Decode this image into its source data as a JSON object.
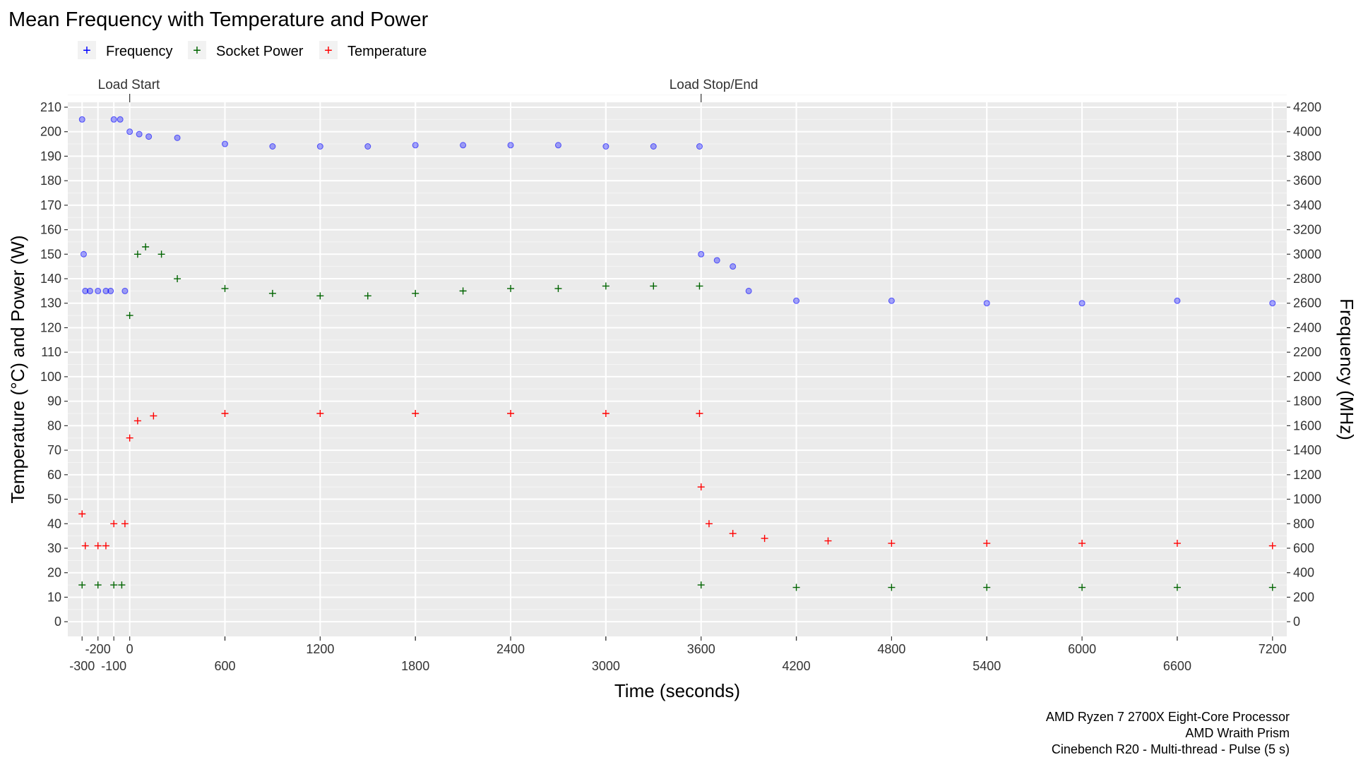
{
  "chart_data": {
    "type": "scatter",
    "title": "Mean Frequency with Temperature and Power",
    "xlabel": "Time (seconds)",
    "ylabel_left": "Temperature (°C) and Power (W)",
    "ylabel_right": "Frequency (MHz)",
    "xlim": [
      -300,
      7200
    ],
    "ylim_left": [
      0,
      210
    ],
    "ylim_right": [
      0,
      4200
    ],
    "x_ticks_upper": [
      -200,
      0,
      600,
      1200,
      1800,
      2400,
      3000,
      3600,
      4200,
      4800,
      5400,
      6000,
      6600,
      7200
    ],
    "x_ticks_lower": [
      -300,
      -100,
      600,
      1800,
      3000,
      4200,
      5400,
      6600
    ],
    "x_ticks_upper_labels": [
      "-200",
      "0",
      "",
      "1200",
      "",
      "2400",
      "",
      "3600",
      "",
      "4800",
      "",
      "6000",
      "",
      "7200"
    ],
    "x_ticks_lower_labels": [
      "-300",
      "-100",
      "600",
      "1800",
      "3000",
      "4200",
      "5400",
      "6600"
    ],
    "y_ticks_left": [
      0,
      10,
      20,
      30,
      40,
      50,
      60,
      70,
      80,
      90,
      100,
      110,
      120,
      130,
      140,
      150,
      160,
      170,
      180,
      190,
      200,
      210
    ],
    "y_ticks_right": [
      0,
      200,
      400,
      600,
      800,
      1000,
      1200,
      1400,
      1600,
      1800,
      2000,
      2200,
      2400,
      2600,
      2800,
      3000,
      3200,
      3400,
      3600,
      3800,
      4000,
      4200
    ],
    "legend": [
      {
        "label": "Frequency",
        "color": "#0000ff"
      },
      {
        "label": "Socket Power",
        "color": "#006400"
      },
      {
        "label": "Temperature",
        "color": "#ff0000"
      }
    ],
    "annotations": [
      {
        "label": "Load Start",
        "x": 0
      },
      {
        "label": "Load Stop/End",
        "x": 3600
      }
    ],
    "grid": true,
    "legend_position": "top",
    "series": [
      {
        "name": "Frequency",
        "axis": "right",
        "marker": "circle",
        "color": "#0000ff",
        "points": [
          [
            -300,
            4100
          ],
          [
            -290,
            3000
          ],
          [
            -280,
            2700
          ],
          [
            -250,
            2700
          ],
          [
            -200,
            2700
          ],
          [
            -150,
            2700
          ],
          [
            -120,
            2700
          ],
          [
            -100,
            4100
          ],
          [
            -60,
            4100
          ],
          [
            -30,
            2700
          ],
          [
            0,
            4000
          ],
          [
            60,
            3980
          ],
          [
            120,
            3960
          ],
          [
            300,
            3950
          ],
          [
            600,
            3900
          ],
          [
            900,
            3880
          ],
          [
            1200,
            3880
          ],
          [
            1500,
            3880
          ],
          [
            1800,
            3890
          ],
          [
            2100,
            3890
          ],
          [
            2400,
            3890
          ],
          [
            2700,
            3890
          ],
          [
            3000,
            3880
          ],
          [
            3300,
            3880
          ],
          [
            3590,
            3880
          ],
          [
            3600,
            3000
          ],
          [
            3700,
            2950
          ],
          [
            3800,
            2900
          ],
          [
            3900,
            2700
          ],
          [
            4200,
            2620
          ],
          [
            4800,
            2620
          ],
          [
            5400,
            2600
          ],
          [
            6000,
            2600
          ],
          [
            6600,
            2620
          ],
          [
            7200,
            2600
          ]
        ]
      },
      {
        "name": "Socket Power",
        "axis": "left",
        "marker": "plus",
        "color": "#006400",
        "points": [
          [
            -300,
            15
          ],
          [
            -200,
            15
          ],
          [
            -100,
            15
          ],
          [
            -50,
            15
          ],
          [
            0,
            125
          ],
          [
            50,
            150
          ],
          [
            100,
            153
          ],
          [
            200,
            150
          ],
          [
            300,
            140
          ],
          [
            600,
            136
          ],
          [
            900,
            134
          ],
          [
            1200,
            133
          ],
          [
            1500,
            133
          ],
          [
            1800,
            134
          ],
          [
            2100,
            135
          ],
          [
            2400,
            136
          ],
          [
            2700,
            136
          ],
          [
            3000,
            137
          ],
          [
            3300,
            137
          ],
          [
            3590,
            137
          ],
          [
            3600,
            15
          ],
          [
            4200,
            14
          ],
          [
            4800,
            14
          ],
          [
            5400,
            14
          ],
          [
            6000,
            14
          ],
          [
            6600,
            14
          ],
          [
            7200,
            14
          ]
        ]
      },
      {
        "name": "Temperature",
        "axis": "left",
        "marker": "plus",
        "color": "#ff0000",
        "points": [
          [
            -300,
            44
          ],
          [
            -280,
            31
          ],
          [
            -200,
            31
          ],
          [
            -150,
            31
          ],
          [
            -100,
            40
          ],
          [
            -30,
            40
          ],
          [
            0,
            75
          ],
          [
            50,
            82
          ],
          [
            150,
            84
          ],
          [
            600,
            85
          ],
          [
            1200,
            85
          ],
          [
            1800,
            85
          ],
          [
            2400,
            85
          ],
          [
            3000,
            85
          ],
          [
            3590,
            85
          ],
          [
            3600,
            55
          ],
          [
            3650,
            40
          ],
          [
            3800,
            36
          ],
          [
            4000,
            34
          ],
          [
            4400,
            33
          ],
          [
            4800,
            32
          ],
          [
            5400,
            32
          ],
          [
            6000,
            32
          ],
          [
            6600,
            32
          ],
          [
            7200,
            31
          ]
        ]
      }
    ]
  },
  "caption": {
    "line1": "AMD Ryzen 7 2700X Eight-Core Processor",
    "line2": "AMD Wraith Prism",
    "line3": "Cinebench R20 - Multi-thread - Pulse (5 s)"
  }
}
